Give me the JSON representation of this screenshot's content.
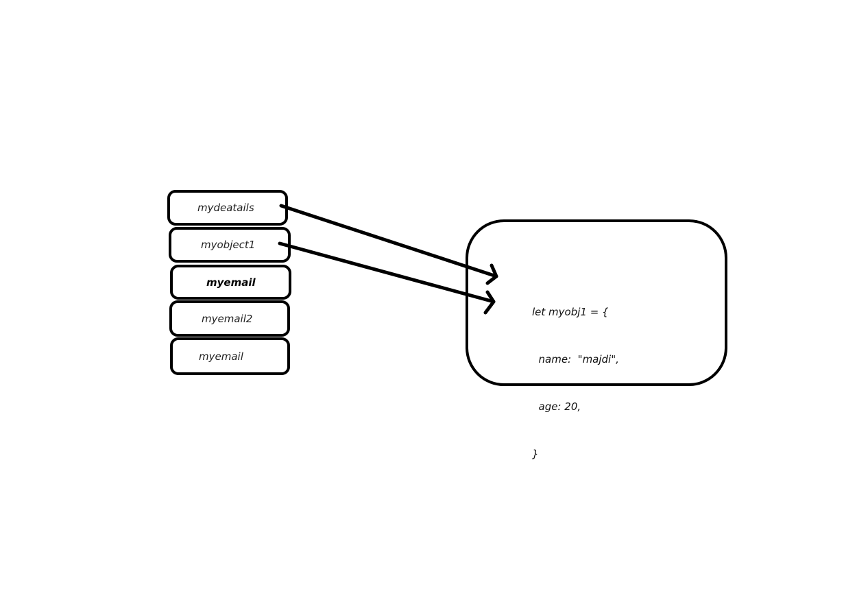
{
  "variables": [
    {
      "label": "mydeatails",
      "bold": false
    },
    {
      "label": "myobject1",
      "bold": false
    },
    {
      "label": "myemail",
      "bold": true
    },
    {
      "label": "myemail2",
      "bold": false
    },
    {
      "label": "myemail",
      "bold": false
    }
  ],
  "object": {
    "code_lines": [
      "let myobj1 = {",
      "  name:  \"majdi\",",
      "  age: 20,",
      "}"
    ]
  },
  "arrows": [
    {
      "from": "mydeatails",
      "to": "object"
    },
    {
      "from": "myobject1",
      "to": "object"
    }
  ],
  "colors": {
    "stroke": "#000000",
    "background": "#ffffff"
  }
}
